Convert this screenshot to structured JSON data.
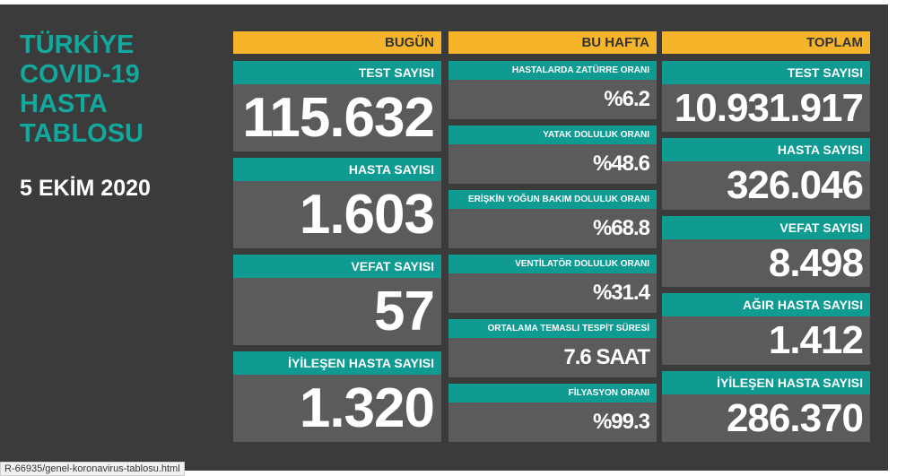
{
  "title_lines": [
    "TÜRKİYE",
    "COVID-19",
    "HASTA",
    "TABLOSU"
  ],
  "date": "5 EKİM 2020",
  "columns": [
    {
      "header": "BUGÜN",
      "items": [
        {
          "label": "TEST SAYISI",
          "value": "115.632"
        },
        {
          "label": "HASTA SAYISI",
          "value": "1.603"
        },
        {
          "label": "VEFAT SAYISI",
          "value": "57"
        },
        {
          "label": "İYİLEŞEN HASTA SAYISI",
          "value": "1.320"
        }
      ]
    },
    {
      "header": "BU HAFTA",
      "items": [
        {
          "label": "HASTALARDA ZATÜRRE ORANI",
          "value": "%6.2"
        },
        {
          "label": "YATAK DOLULUK ORANI",
          "value": "%48.6"
        },
        {
          "label": "ERİŞKİN YOĞUN BAKIM DOLULUK ORANI",
          "value": "%68.8"
        },
        {
          "label": "VENTİLATÖR DOLULUK ORANI",
          "value": "%31.4"
        },
        {
          "label": "ORTALAMA TEMASLI TESPİT SÜRESİ",
          "value": "7.6 SAAT"
        },
        {
          "label": "FİLYASYON ORANI",
          "value": "%99.3"
        }
      ]
    },
    {
      "header": "TOPLAM",
      "items": [
        {
          "label": "TEST SAYISI",
          "value": "10.931.917"
        },
        {
          "label": "HASTA SAYISI",
          "value": "326.046"
        },
        {
          "label": "VEFAT SAYISI",
          "value": "8.498"
        },
        {
          "label": "AĞIR HASTA SAYISI",
          "value": "1.412"
        },
        {
          "label": "İYİLEŞEN HASTA SAYISI",
          "value": "286.370"
        }
      ]
    }
  ],
  "status_url": "R-66935/genel-koronavirus-tablosu.html"
}
